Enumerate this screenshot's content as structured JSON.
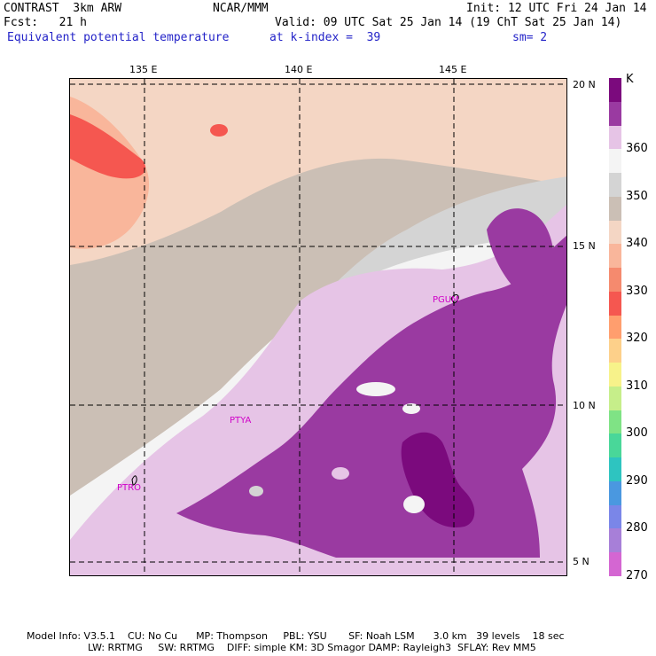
{
  "header": {
    "model": "CONTRAST  3km ARW",
    "forecast": "Fcst:   21 h",
    "field": "Equivalent potential temperature",
    "center": "NCAR/MMM",
    "init": "Init: 12 UTC Fri 24 Jan 14",
    "valid": "Valid: 09 UTC Sat 25 Jan 14 (19 ChT Sat 25 Jan 14)",
    "level": "at k-index =  39",
    "smoothing": "sm= 2"
  },
  "map": {
    "lon_labels": [
      "135 E",
      "140 E",
      "145 E"
    ],
    "lat_labels": [
      "20 N",
      "15 N",
      "10 N",
      "5 N"
    ],
    "stations": [
      "PGUM",
      "PTYA",
      "PTRO"
    ]
  },
  "legend": {
    "unit": "K",
    "labels": [
      "360",
      "350",
      "340",
      "330",
      "320",
      "310",
      "300",
      "290",
      "280",
      "270"
    ],
    "colors": [
      "#7b0a7d",
      "#9a3aa1",
      "#e6c4e6",
      "#f4f4f4",
      "#d4d4d4",
      "#cbbfb5",
      "#f4d6c4",
      "#f9b69b",
      "#f58a6e",
      "#f55750",
      "#ff9e6e",
      "#fdd08a",
      "#f7f28a",
      "#c6ee8a",
      "#7fe385",
      "#49d799",
      "#2ec4c0",
      "#4a98e0",
      "#7a86e8",
      "#a77fd8",
      "#d466d2"
    ]
  },
  "footer": {
    "line1": "Model Info: V3.5.1    CU: No Cu      MP: Thompson     PBL: YSU       SF: Noah LSM      3.0 km   39 levels    18 sec",
    "line2": "LW: RRTMG     SW: RRTMG    DIFF: simple KM: 3D Smagor DAMP: Rayleigh3  SFLAY: Rev MM5"
  }
}
